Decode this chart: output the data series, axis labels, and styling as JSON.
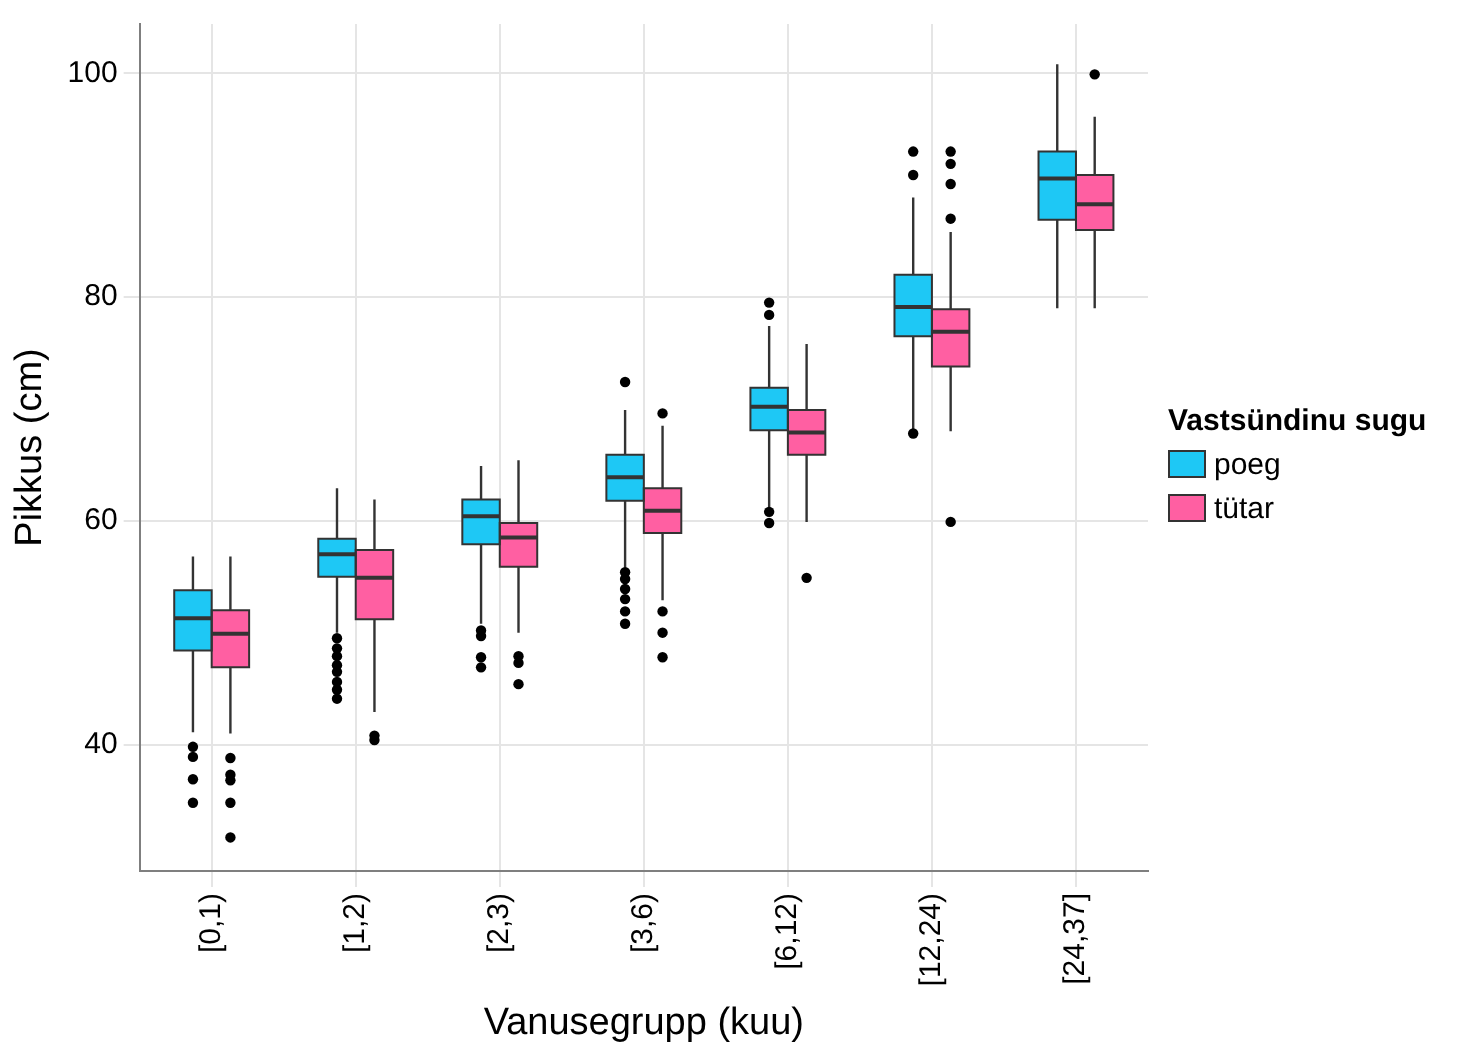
{
  "chart_data": {
    "type": "box",
    "xlabel": "Vanusegrupp (kuu)",
    "ylabel": "Pikkus (cm)",
    "legend_title": "Vastsündinu sugu",
    "legend": "right",
    "grid": true,
    "categories": [
      "[0,1)",
      "[1,2)",
      "[2,3)",
      "[3,6)",
      "[6,12)",
      "[12,24)",
      "[24,37]"
    ],
    "ylim": [
      28.7,
      104.4
    ],
    "yticks": [
      40,
      60,
      80,
      100
    ],
    "series": [
      {
        "name": "poeg",
        "color": "#1ec8f5",
        "boxes": [
          {
            "low": 41.1,
            "q1": 48.4,
            "median": 51.3,
            "q3": 53.8,
            "high": 56.8,
            "outliers": [
              39.8,
              38.9,
              36.9,
              34.8
            ]
          },
          {
            "low": 50.0,
            "q1": 55.0,
            "median": 57.0,
            "q3": 58.4,
            "high": 62.9,
            "outliers": [
              49.5,
              48.6,
              47.9,
              47.1,
              46.5,
              45.6,
              44.9,
              44.1
            ]
          },
          {
            "low": 50.8,
            "q1": 57.9,
            "median": 60.4,
            "q3": 61.9,
            "high": 64.9,
            "outliers": [
              50.2,
              49.7,
              47.8,
              46.9
            ]
          },
          {
            "low": 55.8,
            "q1": 61.8,
            "median": 63.9,
            "q3": 65.9,
            "high": 69.9,
            "outliers": [
              72.4,
              55.4,
              54.8,
              53.9,
              53.0,
              51.9,
              50.8
            ]
          },
          {
            "low": 61.1,
            "q1": 68.1,
            "median": 70.2,
            "q3": 71.9,
            "high": 77.4,
            "outliers": [
              79.5,
              78.4,
              60.8,
              59.8
            ]
          },
          {
            "low": 68.2,
            "q1": 76.5,
            "median": 79.1,
            "q3": 82.0,
            "high": 88.9,
            "outliers": [
              93.0,
              90.9,
              67.8
            ]
          },
          {
            "low": 79.0,
            "q1": 86.9,
            "median": 90.6,
            "q3": 93.0,
            "high": 100.8
          }
        ]
      },
      {
        "name": "tütar",
        "color": "#ff5fa2",
        "boxes": [
          {
            "low": 41.0,
            "q1": 46.9,
            "median": 49.9,
            "q3": 52.0,
            "high": 56.8,
            "outliers": [
              38.8,
              37.3,
              36.8,
              34.8,
              31.7
            ]
          },
          {
            "low": 42.9,
            "q1": 51.2,
            "median": 54.9,
            "q3": 57.4,
            "high": 61.9,
            "outliers": [
              40.8,
              40.4
            ]
          },
          {
            "low": 50.0,
            "q1": 55.9,
            "median": 58.5,
            "q3": 59.8,
            "high": 65.4,
            "outliers": [
              47.9,
              47.3,
              45.4
            ]
          },
          {
            "low": 52.9,
            "q1": 58.9,
            "median": 60.9,
            "q3": 62.9,
            "high": 68.5,
            "outliers": [
              69.6,
              51.9,
              50.0,
              47.8
            ]
          },
          {
            "low": 59.9,
            "q1": 65.9,
            "median": 67.9,
            "q3": 69.9,
            "high": 75.8,
            "outliers": [
              54.9
            ]
          },
          {
            "low": 68.0,
            "q1": 73.8,
            "median": 76.9,
            "q3": 78.9,
            "high": 85.8,
            "outliers": [
              93.0,
              91.9,
              90.1,
              87.0,
              59.9
            ]
          },
          {
            "low": 79.0,
            "q1": 86.0,
            "median": 88.3,
            "q3": 90.9,
            "high": 96.1,
            "outliers": [
              99.9
            ]
          }
        ]
      }
    ]
  }
}
